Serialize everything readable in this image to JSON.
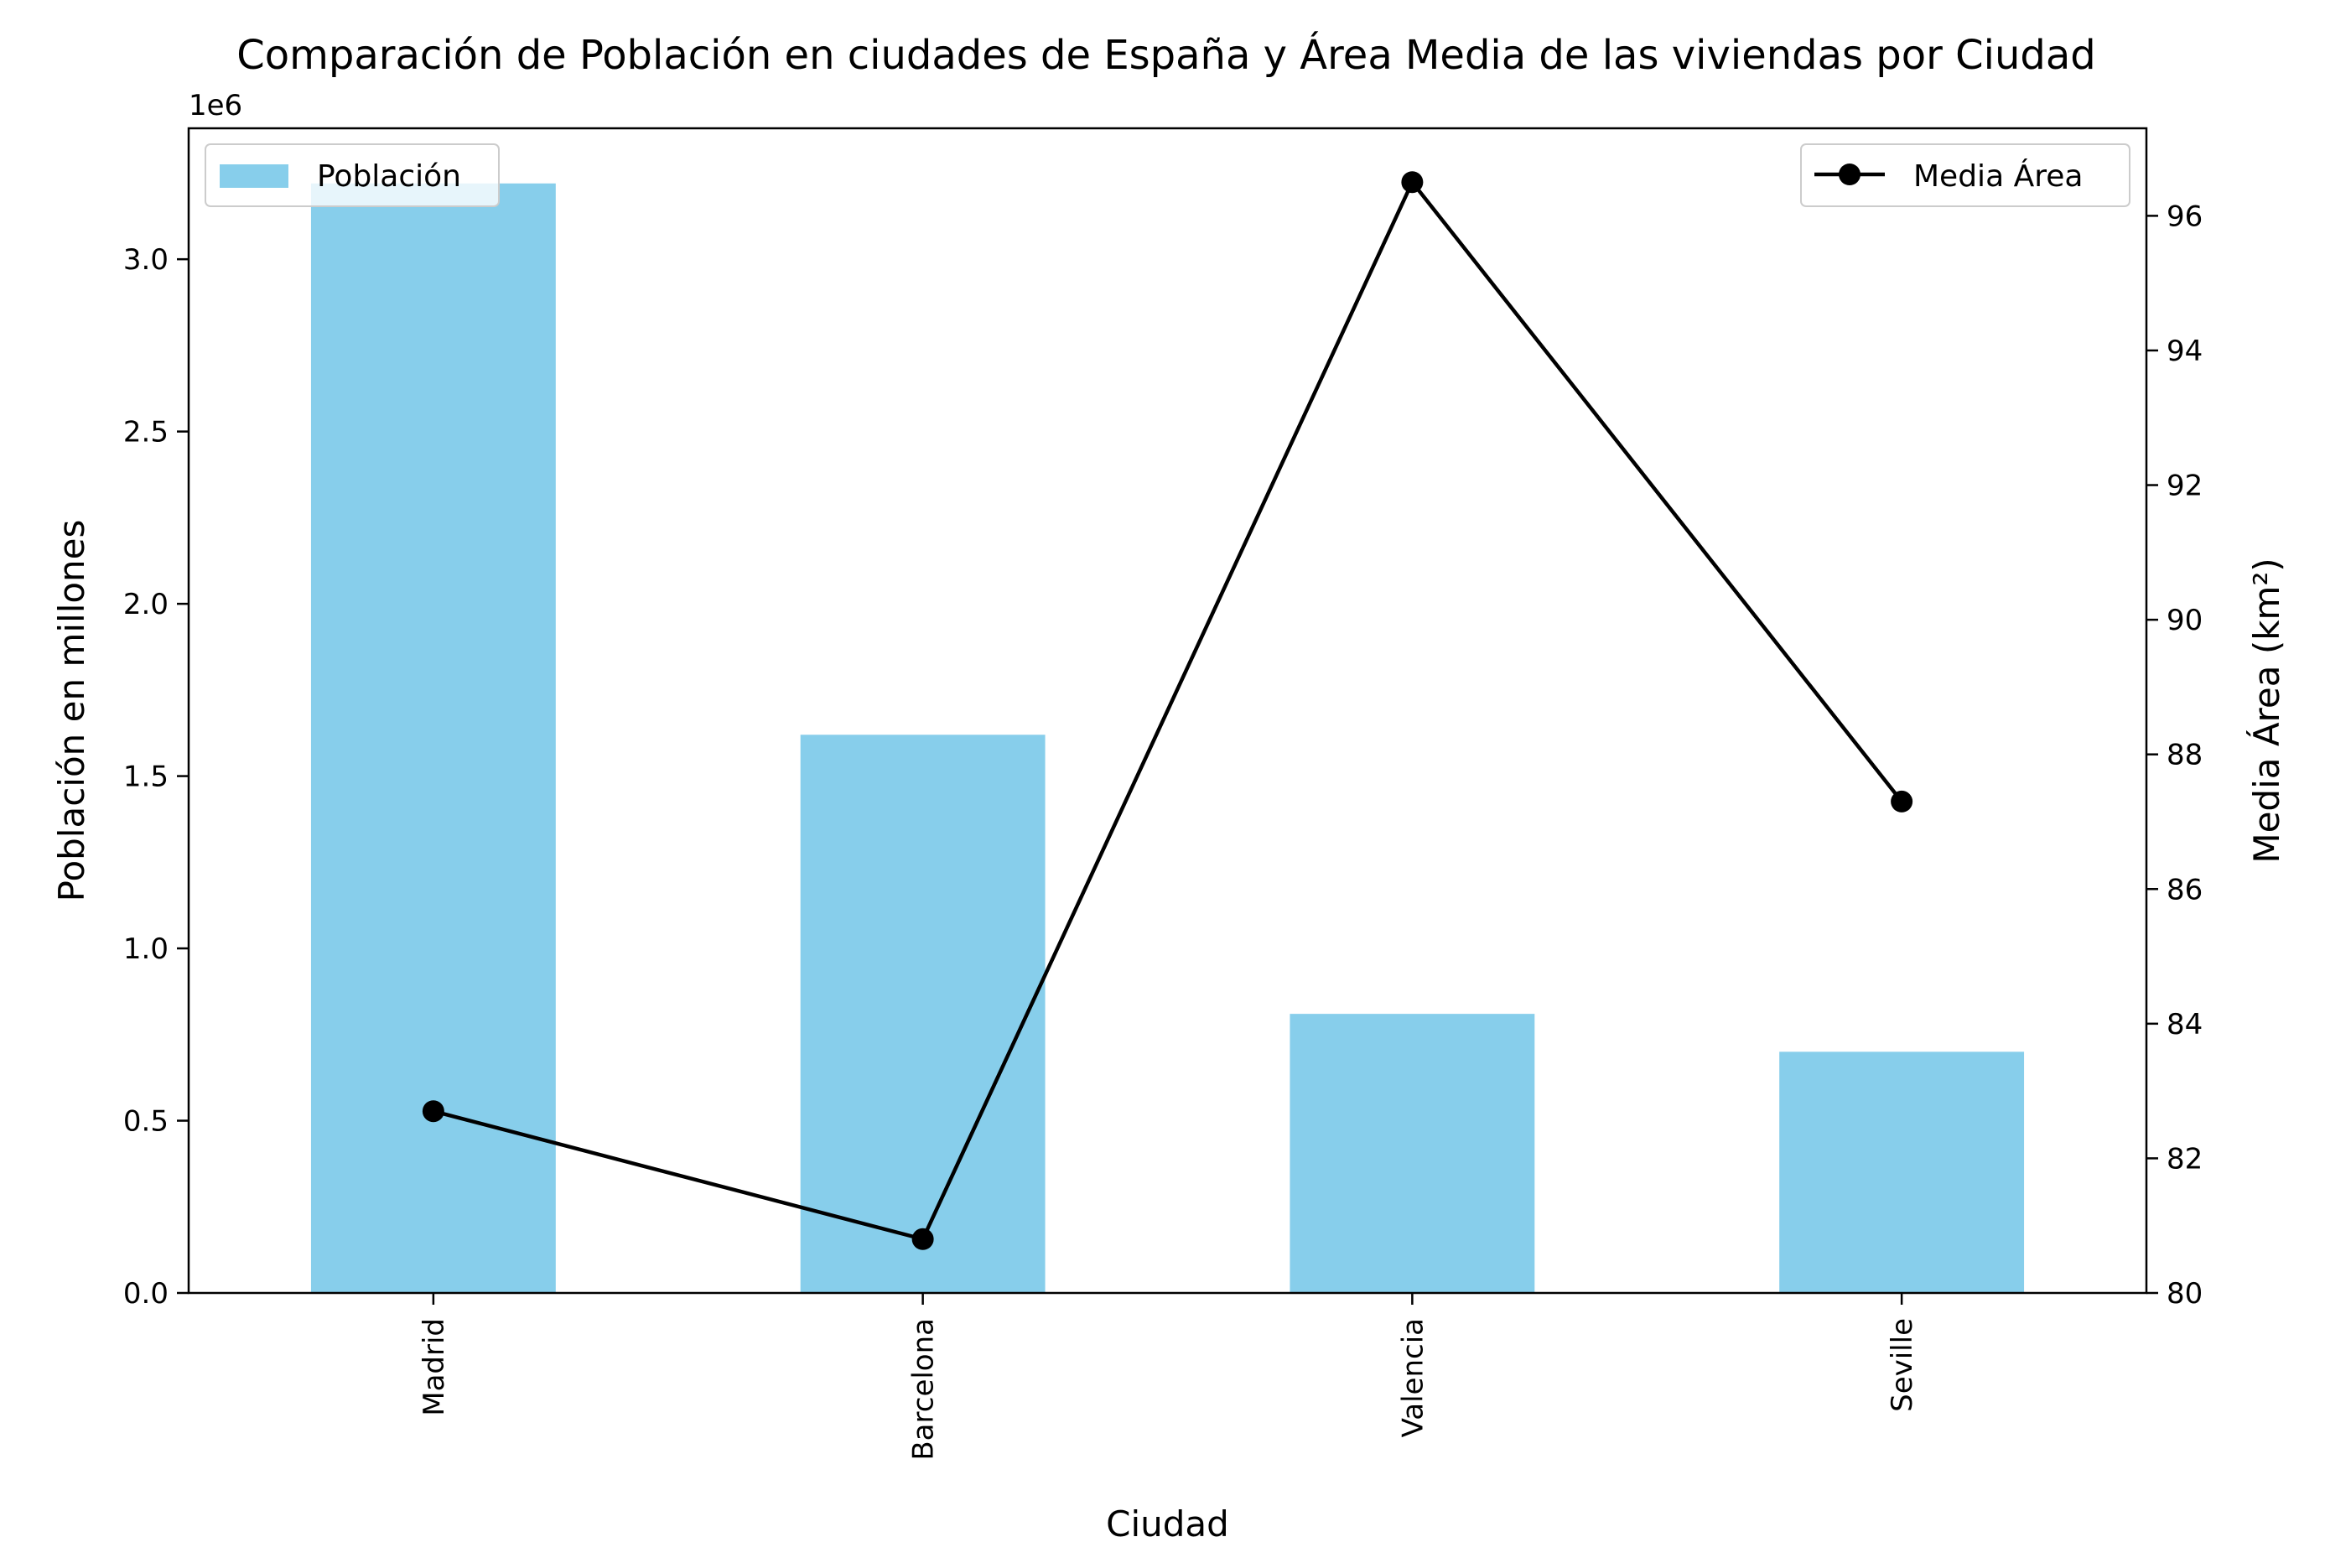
{
  "chart_data": {
    "type": "bar",
    "title": "Comparación de Población en ciudades de España y Área Media  de las viviendas por Ciudad",
    "xlabel": "Ciudad",
    "ylabel": "Población en millones",
    "y2label": "Media Área (km²)",
    "y_offset_label": "1e6",
    "categories": [
      "Madrid",
      "Barcelona",
      "Valencia",
      "Seville"
    ],
    "ylim": [
      0,
      3.38
    ],
    "y2lim": [
      80,
      97.3
    ],
    "y_ticks": [
      "0.0",
      "0.5",
      "1.0",
      "1.5",
      "2.0",
      "2.5",
      "3.0"
    ],
    "y2_ticks": [
      "80",
      "82",
      "84",
      "86",
      "88",
      "90",
      "92",
      "94",
      "96"
    ],
    "grid": false,
    "series": [
      {
        "name": "Población",
        "type": "bar",
        "axis": "left",
        "color": "#87ceeb",
        "values": [
          3.22,
          1.62,
          0.81,
          0.7
        ]
      },
      {
        "name": "Media Área",
        "type": "line",
        "axis": "right",
        "color": "#000000",
        "marker": "circle",
        "values": [
          82.7,
          80.8,
          96.5,
          87.3
        ]
      }
    ],
    "legends": [
      {
        "placement": "upper-left",
        "series": "Población"
      },
      {
        "placement": "upper-right",
        "series": "Media Área"
      }
    ]
  }
}
